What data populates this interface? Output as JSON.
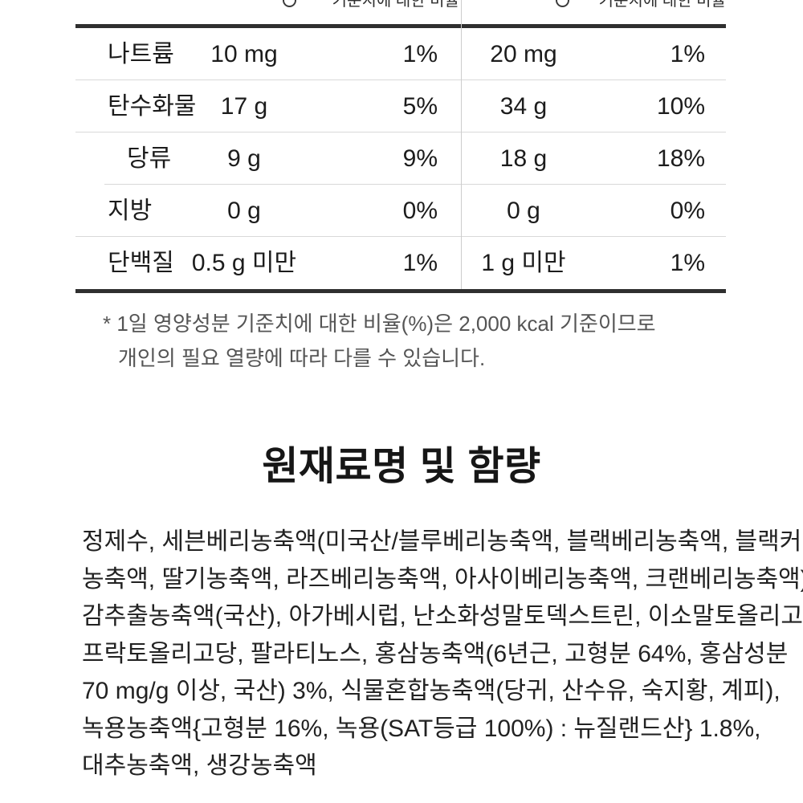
{
  "nutrition_table": {
    "ratio_header": "기준치에 대한 비율",
    "rows": [
      {
        "label": "나트륨",
        "amount1": "10 mg",
        "percent1": "1%",
        "amount2": "20 mg",
        "percent2": "1%"
      },
      {
        "label": "탄수화물",
        "amount1": "17 g",
        "percent1": "5%",
        "amount2": "34 g",
        "percent2": "10%"
      },
      {
        "label": "당류",
        "amount1": "9 g",
        "percent1": "9%",
        "amount2": "18 g",
        "percent2": "18%"
      },
      {
        "label": "지방",
        "amount1": "0 g",
        "percent1": "0%",
        "amount2": "0 g",
        "percent2": "0%"
      },
      {
        "label": "단백질",
        "amount1": "0.5 g 미만",
        "percent1": "1%",
        "amount2": "1 g 미만",
        "percent2": "1%"
      }
    ]
  },
  "footnote": {
    "line1": "* 1일 영양성분 기준치에 대한 비율(%)은 2,000 kcal 기준이므로",
    "line2": "개인의 필요 열량에 따라 다를 수 있습니다."
  },
  "ingredients_section": {
    "title": "원재료명 및 함량",
    "lines": [
      "정제수, 세븐베리농축액(미국산/블루베리농축액, 블랙베리농축액, 블랙커런트",
      "농축액, 딸기농축액, 라즈베리농축액, 아사이베리농축액, 크랜베리농축액),",
      "감추출농축액(국산), 아가베시럽, 난소화성말토덱스트린, 이소말토올리고당,",
      "프락토올리고당, 팔라티노스, 홍삼농축액(6년근, 고형분 64%, 홍삼성분",
      "70 mg/g 이상, 국산) 3%, 식물혼합농축액(당귀, 산수유, 숙지황, 계피),",
      "녹용농축액{고형분 16%, 녹용(SAT등급 100%) : 뉴질랜드산} 1.8%,",
      "대추농축액, 생강농축액"
    ]
  },
  "colors": {
    "text_primary": "#1c1c1c",
    "text_muted": "#555555",
    "border_heavy": "#2f2f2f",
    "border_light": "#d9d9d9",
    "divider_vertical": "#cccccc"
  }
}
